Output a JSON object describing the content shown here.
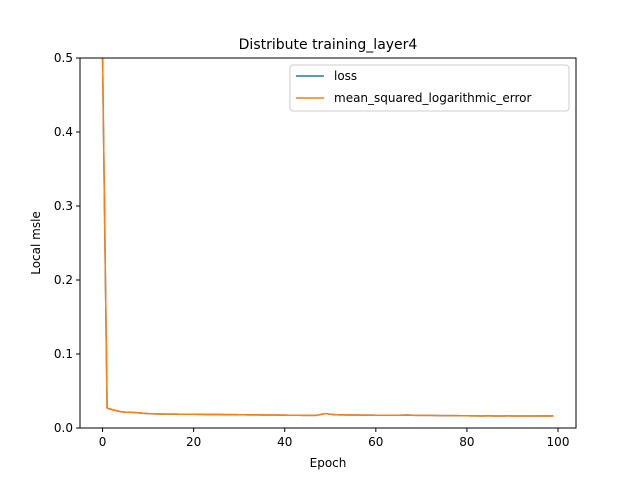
{
  "chart_data": {
    "type": "line",
    "title": "Distribute training_layer4",
    "xlabel": "Epoch",
    "ylabel": "Local msle",
    "xlim": [
      -4.95,
      103.95
    ],
    "ylim": [
      0,
      0.5
    ],
    "xticks": [
      0,
      20,
      40,
      60,
      80,
      100
    ],
    "yticks": [
      0.0,
      0.1,
      0.2,
      0.3,
      0.4,
      0.5
    ],
    "ytick_labels": [
      "0.0",
      "0.1",
      "0.2",
      "0.3",
      "0.4",
      "0.5"
    ],
    "grid": false,
    "legend_position": "top-right",
    "x": [
      0,
      1,
      2,
      3,
      4,
      5,
      6,
      7,
      8,
      9,
      10,
      11,
      12,
      13,
      14,
      15,
      16,
      17,
      18,
      19,
      20,
      21,
      22,
      23,
      24,
      25,
      26,
      27,
      28,
      29,
      30,
      31,
      32,
      33,
      34,
      35,
      36,
      37,
      38,
      39,
      40,
      41,
      42,
      43,
      44,
      45,
      46,
      47,
      48,
      49,
      50,
      51,
      52,
      53,
      54,
      55,
      56,
      57,
      58,
      59,
      60,
      61,
      62,
      63,
      64,
      65,
      66,
      67,
      68,
      69,
      70,
      71,
      72,
      73,
      74,
      75,
      76,
      77,
      78,
      79,
      80,
      81,
      82,
      83,
      84,
      85,
      86,
      87,
      88,
      89,
      90,
      91,
      92,
      93,
      94,
      95,
      96,
      97,
      98,
      99
    ],
    "series": [
      {
        "name": "loss",
        "color": "#1f77b4",
        "values": [
          0.5,
          0.027,
          0.025,
          0.0235,
          0.022,
          0.0215,
          0.0212,
          0.021,
          0.0205,
          0.02,
          0.0195,
          0.0192,
          0.019,
          0.019,
          0.0188,
          0.0187,
          0.0187,
          0.0186,
          0.0186,
          0.0185,
          0.0185,
          0.0184,
          0.0184,
          0.0183,
          0.0183,
          0.0183,
          0.0182,
          0.0181,
          0.018,
          0.018,
          0.0179,
          0.0179,
          0.0178,
          0.0178,
          0.0177,
          0.0176,
          0.0176,
          0.0175,
          0.0175,
          0.0174,
          0.0174,
          0.0173,
          0.0172,
          0.0172,
          0.0171,
          0.0171,
          0.017,
          0.017,
          0.0185,
          0.0195,
          0.0185,
          0.018,
          0.0178,
          0.0177,
          0.0176,
          0.0175,
          0.0175,
          0.0174,
          0.0174,
          0.0174,
          0.0173,
          0.0173,
          0.0173,
          0.0173,
          0.0172,
          0.0172,
          0.0174,
          0.0175,
          0.0172,
          0.0171,
          0.0171,
          0.017,
          0.017,
          0.0169,
          0.0168,
          0.0168,
          0.0168,
          0.0167,
          0.0167,
          0.0166,
          0.0165,
          0.0164,
          0.0164,
          0.0163,
          0.0164,
          0.0165,
          0.0163,
          0.0162,
          0.0163,
          0.0164,
          0.0163,
          0.0162,
          0.0163,
          0.0163,
          0.0162,
          0.0162,
          0.0164,
          0.0163,
          0.0164,
          0.0163
        ]
      },
      {
        "name": "mean_squared_logarithmic_error",
        "color": "#ff7f0e",
        "values": [
          0.5,
          0.027,
          0.025,
          0.0235,
          0.022,
          0.0215,
          0.0212,
          0.021,
          0.0205,
          0.02,
          0.0195,
          0.0192,
          0.019,
          0.019,
          0.0188,
          0.0187,
          0.0187,
          0.0186,
          0.0186,
          0.0185,
          0.0185,
          0.0184,
          0.0184,
          0.0183,
          0.0183,
          0.0183,
          0.0182,
          0.0181,
          0.018,
          0.018,
          0.0179,
          0.0179,
          0.0178,
          0.0178,
          0.0177,
          0.0176,
          0.0176,
          0.0175,
          0.0175,
          0.0174,
          0.0174,
          0.0173,
          0.0172,
          0.0172,
          0.0171,
          0.0171,
          0.017,
          0.017,
          0.0185,
          0.0195,
          0.0185,
          0.018,
          0.0178,
          0.0177,
          0.0176,
          0.0175,
          0.0175,
          0.0174,
          0.0174,
          0.0174,
          0.0173,
          0.0173,
          0.0173,
          0.0173,
          0.0172,
          0.0172,
          0.0174,
          0.0175,
          0.0172,
          0.0171,
          0.0171,
          0.017,
          0.017,
          0.0169,
          0.0168,
          0.0168,
          0.0168,
          0.0167,
          0.0167,
          0.0166,
          0.0165,
          0.0164,
          0.0164,
          0.0163,
          0.0164,
          0.0165,
          0.0163,
          0.0162,
          0.0163,
          0.0164,
          0.0163,
          0.0162,
          0.0163,
          0.0163,
          0.0162,
          0.0162,
          0.0164,
          0.0163,
          0.0164,
          0.0163
        ]
      }
    ]
  }
}
